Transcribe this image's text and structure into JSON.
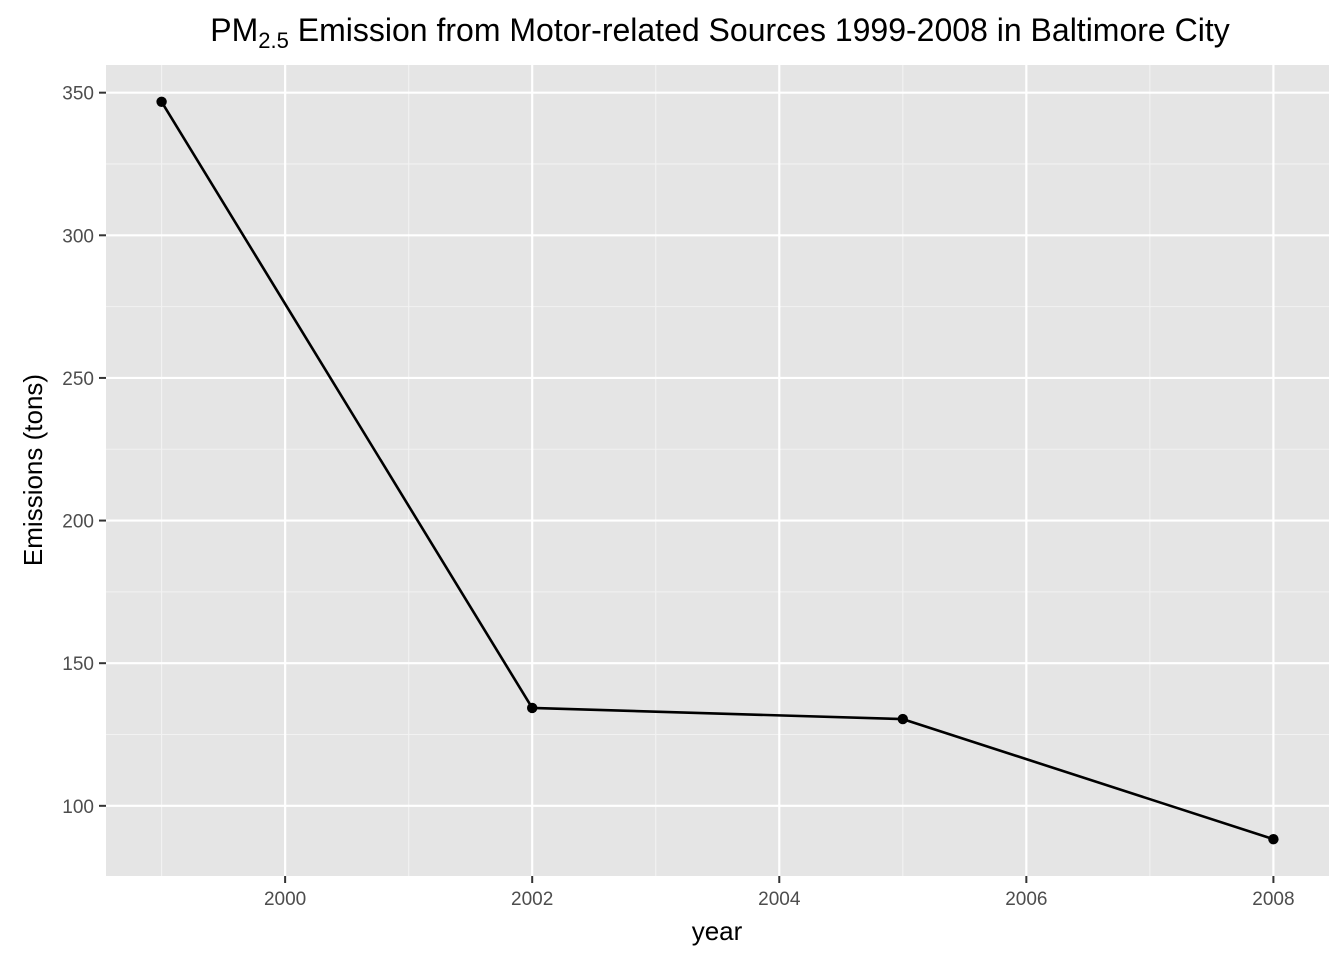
{
  "chart_data": {
    "type": "line",
    "title": {
      "prefix": "PM",
      "subscript": "2.5",
      "rest": " Emission from Motor-related Sources 1999-2008 in Baltimore City"
    },
    "xlabel": "year",
    "ylabel": "Emissions (tons)",
    "x": [
      1999,
      2002,
      2005,
      2008
    ],
    "series": [
      {
        "values": [
          346.8,
          134.3,
          130.4,
          88.3
        ]
      }
    ],
    "xlim": [
      1998.55,
      2008.45
    ],
    "ylim": [
      75.4,
      359.7
    ],
    "x_ticks": [
      2000,
      2002,
      2004,
      2006,
      2008
    ],
    "x_tick_labels": [
      "2000",
      "2002",
      "2004",
      "2006",
      "2008"
    ],
    "y_ticks": [
      100,
      150,
      200,
      250,
      300,
      350
    ],
    "y_tick_labels": [
      "100",
      "150",
      "200",
      "250",
      "300",
      "350"
    ],
    "x_minor_ticks": [
      1999,
      2001,
      2003,
      2005,
      2007
    ],
    "y_minor_ticks": [
      125,
      175,
      225,
      275,
      325
    ],
    "grid": true,
    "legend": "none",
    "colors": {
      "panel_background": "#e5e5e5",
      "grid_major": "#ffffff",
      "grid_minor": "#f2f2f2",
      "line": "#000000",
      "point": "#000000",
      "tick_label": "#4d4d4d",
      "axis_tick": "#333333"
    }
  }
}
